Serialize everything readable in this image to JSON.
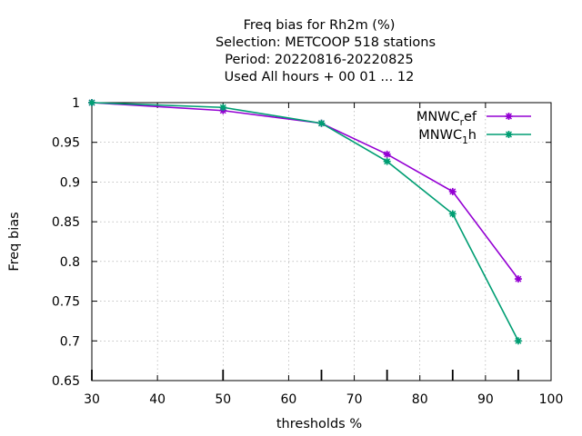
{
  "chart_data": {
    "type": "line",
    "title_lines": [
      "Freq bias  for Rh2m (%)",
      "Selection: METCOOP    518 stations",
      "Period: 20220816-20220825",
      "Used  All hours + 00 01 ... 12"
    ],
    "xlabel": "thresholds %",
    "ylabel": "Freq bias",
    "xlim": [
      30,
      100
    ],
    "ylim": [
      0.65,
      1
    ],
    "xticks": [
      "30",
      "40",
      "50",
      "60",
      "70",
      "80",
      "90",
      "100"
    ],
    "yticks": [
      "0.65",
      "0.7",
      "0.75",
      "0.8",
      "0.85",
      "0.9",
      "0.95",
      "1"
    ],
    "grid": true,
    "legend_position": "top-right",
    "x": [
      30,
      50,
      65,
      75,
      85,
      95
    ],
    "series": [
      {
        "name": "MNWC",
        "subscript": "r",
        "suffix": "ef",
        "color": "#9400d3",
        "values": [
          1.0,
          0.99,
          0.974,
          0.935,
          0.888,
          0.778
        ]
      },
      {
        "name": "MNWC",
        "subscript": "1",
        "suffix": "h",
        "color": "#009e73",
        "values": [
          1.0,
          0.994,
          0.974,
          0.926,
          0.86,
          0.7
        ]
      }
    ]
  }
}
